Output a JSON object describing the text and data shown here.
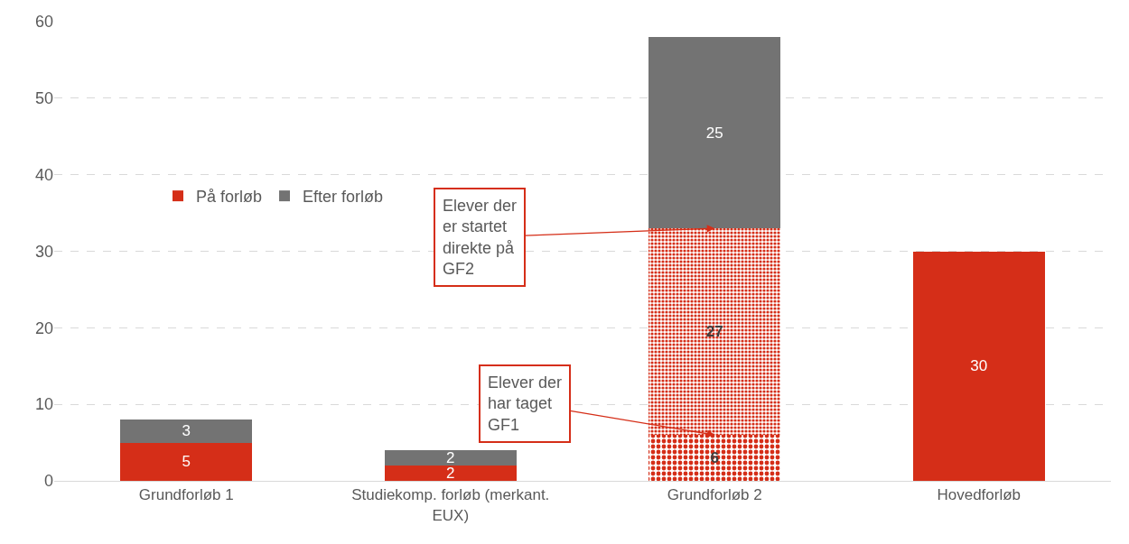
{
  "chart_data": {
    "type": "bar",
    "stacked": true,
    "categories": [
      "Grundforløb 1",
      "Studiekomp. forløb (merkant. EUX)",
      "Grundforløb 2",
      "Hovedforløb"
    ],
    "series": [
      {
        "name": "På forløb",
        "color": "#d52e18",
        "values": [
          5,
          2,
          null,
          30
        ]
      },
      {
        "color": "#d52e18",
        "values": [
          null,
          null,
          6,
          null
        ]
      },
      {
        "color": "#d52e18",
        "values": [
          null,
          null,
          27,
          null
        ]
      },
      {
        "name": "Efter forløb",
        "color": "#737373",
        "values": [
          3,
          2,
          25,
          null
        ]
      }
    ],
    "data_labels": true,
    "annotations": [
      {
        "text": "Elever der er startet direkte på GF2",
        "x": "Grundforløb 2",
        "y": 33
      },
      {
        "text": "Elever der har taget GF1",
        "x": "Grundforløb 2",
        "y": 6
      }
    ],
    "ylim": [
      0,
      60
    ],
    "yticks": [
      0,
      10,
      20,
      30,
      40,
      50,
      60
    ],
    "grid": "y",
    "legend": "top left"
  }
}
